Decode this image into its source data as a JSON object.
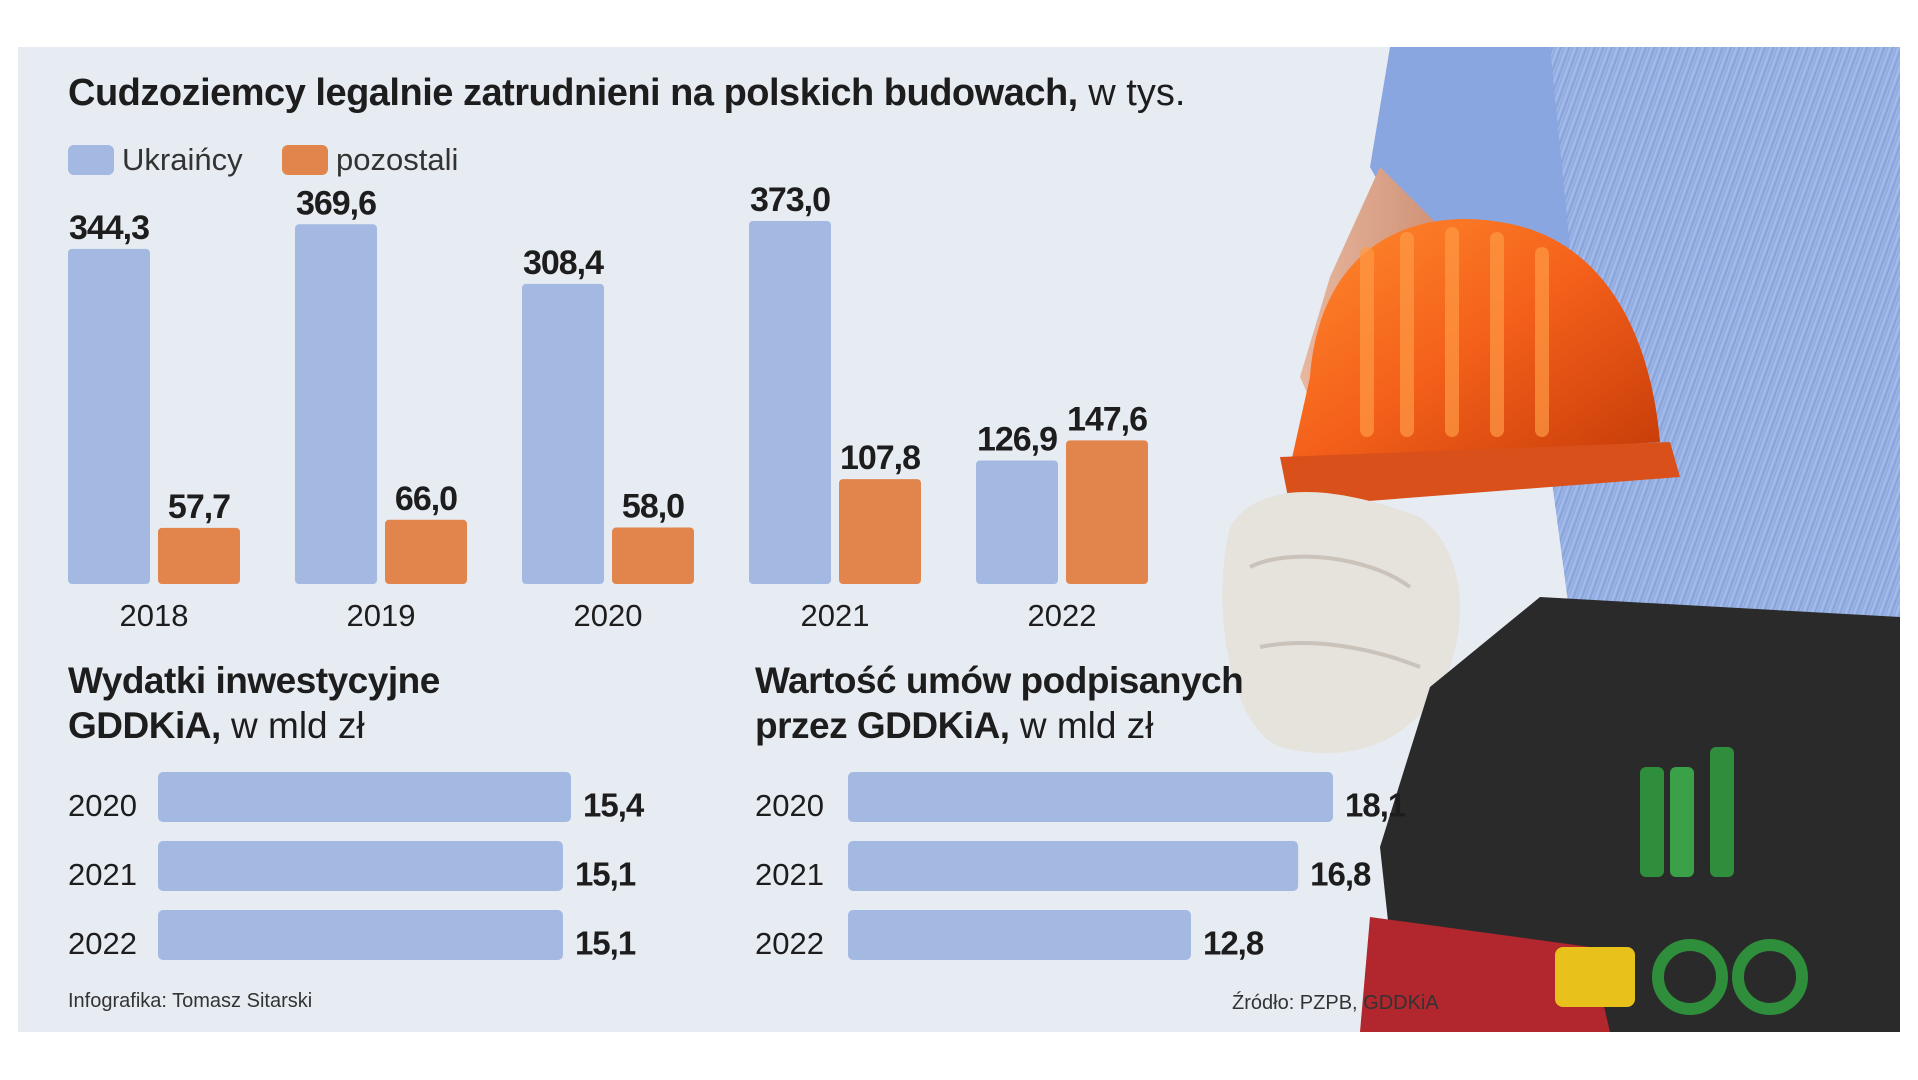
{
  "colors": {
    "ukraincy": "#a3b9e2",
    "pozostali": "#e1854d",
    "panel": "#e7ecf3"
  },
  "main": {
    "title_bold": "Cudzoziemcy legalnie zatrudnieni na polskich budowach,",
    "title_unit": "w tys.",
    "legend": [
      {
        "label": "Ukraińcy",
        "color": "#a3b9e2"
      },
      {
        "label": "pozostali",
        "color": "#e1854d"
      }
    ]
  },
  "left_panel": {
    "title_line1": "Wydatki inwestycyjne",
    "title_line2_bold": "GDDKiA,",
    "title_unit": "w mld zł"
  },
  "right_panel": {
    "title_line1": "Wartość umów podpisanych",
    "title_line2_bold": "przez GDDKiA,",
    "title_unit": "w mld zł"
  },
  "footer": {
    "credit": "Infografika: Tomasz Sitarski",
    "source": "Źródło: PZPB, GDDKiA"
  },
  "photo": {
    "icon": "construction-worker-with-helmet-photo"
  },
  "chart_data": [
    {
      "type": "bar",
      "categories": [
        "2018",
        "2019",
        "2020",
        "2021",
        "2022"
      ],
      "series": [
        {
          "name": "Ukraińcy",
          "values": [
            344.3,
            369.6,
            308.4,
            373.0,
            126.9
          ],
          "labels": [
            "344,3",
            "369,6",
            "308,4",
            "373,0",
            "126,9"
          ]
        },
        {
          "name": "pozostali",
          "values": [
            57.7,
            66.0,
            58.0,
            107.8,
            147.6
          ],
          "labels": [
            "57,7",
            "66,0",
            "58,0",
            "107,8",
            "147,6"
          ]
        }
      ],
      "title": "Cudzoziemcy legalnie zatrudnieni na polskich budowach, w tys.",
      "ylim": [
        0,
        400
      ]
    },
    {
      "type": "bar",
      "orientation": "horizontal",
      "title": "Wydatki inwestycyjne GDDKiA, w mld zł",
      "categories": [
        "2020",
        "2021",
        "2022"
      ],
      "values": [
        15.4,
        15.1,
        15.1
      ],
      "labels": [
        "15,4",
        "15,1",
        "15,1"
      ]
    },
    {
      "type": "bar",
      "orientation": "horizontal",
      "title": "Wartość umów podpisanych przez GDDKiA, w mld zł",
      "categories": [
        "2020",
        "2021",
        "2022"
      ],
      "values": [
        18.1,
        16.8,
        12.8
      ],
      "labels": [
        "18,1",
        "16,8",
        "12,8"
      ]
    }
  ]
}
